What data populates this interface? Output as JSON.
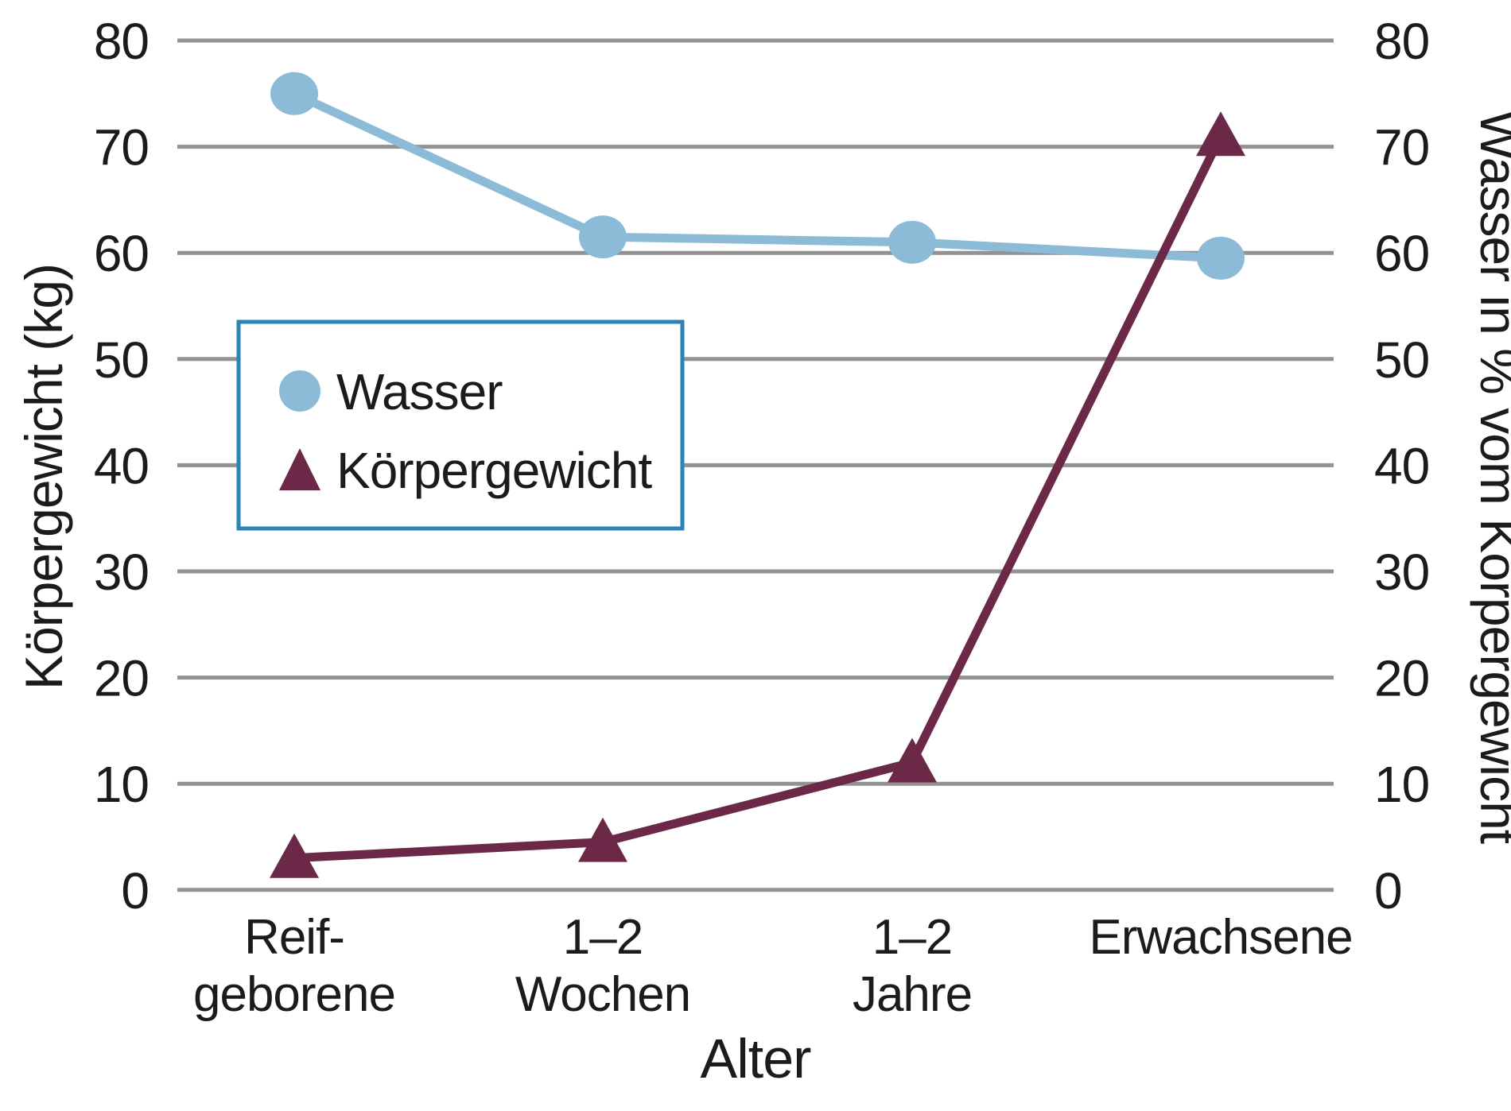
{
  "chart_data": {
    "type": "line",
    "title": "",
    "xlabel": "Alter",
    "y_left_label": "Körpergewicht (kg)",
    "y_right_label": "Wasser in % vom Körpergewicht",
    "ylim": [
      0,
      80
    ],
    "yticks": [
      80,
      70,
      60,
      50,
      40,
      30,
      20,
      10,
      0
    ],
    "grid": true,
    "grid_color": "#929292",
    "categories": [
      {
        "lines": [
          "Reif-",
          "geborene"
        ]
      },
      {
        "lines": [
          "1–2",
          "Wochen"
        ]
      },
      {
        "lines": [
          "1–2",
          "Jahre"
        ]
      },
      {
        "lines": [
          "Erwachsene"
        ]
      }
    ],
    "series": [
      {
        "name": "Wasser",
        "marker": "circle",
        "color": "#8cbbd8",
        "axis": "right",
        "unit": "% vom Körpergewicht",
        "values": [
          75,
          61.5,
          61,
          59.5
        ]
      },
      {
        "name": "Körpergewicht",
        "marker": "triangle",
        "color": "#6b2847",
        "axis": "left",
        "unit": "kg",
        "values": [
          3,
          4.5,
          12,
          71
        ]
      }
    ],
    "legend": {
      "position": "upper-left-inside",
      "border_color": "#2d82b6",
      "background": "#ffffff",
      "items": [
        {
          "label": "Wasser",
          "marker": "circle"
        },
        {
          "label": "Körpergewicht",
          "marker": "triangle"
        }
      ]
    }
  },
  "colors": {
    "text": "#1b1b1b",
    "background": "#ffffff"
  }
}
